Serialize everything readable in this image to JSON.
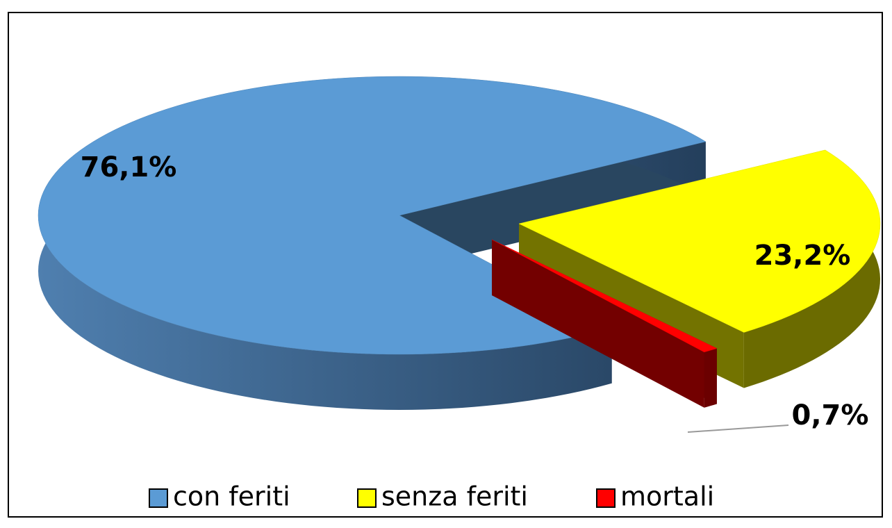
{
  "chart_data": {
    "type": "pie",
    "categories": [
      "con feriti",
      "senza feriti",
      "mortali"
    ],
    "values": [
      76.1,
      23.2,
      0.7
    ],
    "value_labels": [
      "76,1%",
      "23,2%",
      "0,7%"
    ],
    "colors": [
      "#5b9bd5",
      "#ffff00",
      "#ff0000"
    ],
    "legend": "bottom"
  }
}
